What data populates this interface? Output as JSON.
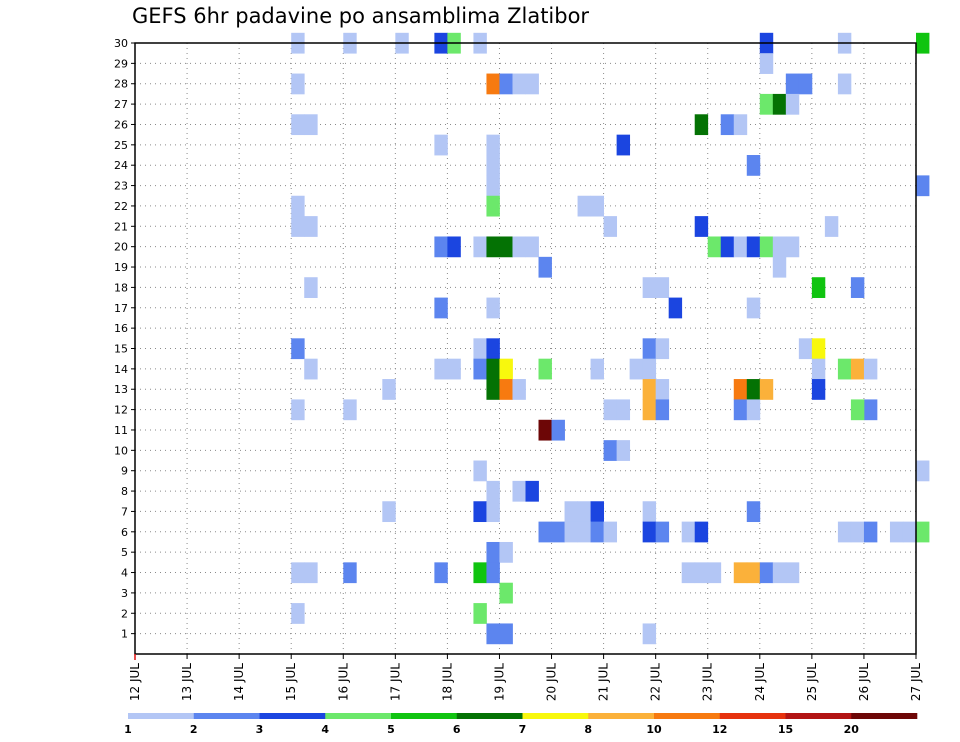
{
  "chart_data": {
    "type": "heatmap",
    "title": "GEFS 6hr padavine po ansamblima Zlatibor",
    "xlabel": "",
    "ylabel": "",
    "x_tick_labels": [
      "12 JUL",
      "13 JUL",
      "14 JUL",
      "15 JUL",
      "16 JUL",
      "17 JUL",
      "18 JUL",
      "19 JUL",
      "20 JUL",
      "21 JUL",
      "22 JUL",
      "23 JUL",
      "24 JUL",
      "25 JUL",
      "26 JUL",
      "27 JUL"
    ],
    "xlim_day": [
      12,
      27
    ],
    "y_tick_labels": [
      "1",
      "2",
      "3",
      "4",
      "5",
      "6",
      "7",
      "8",
      "9",
      "10",
      "11",
      "12",
      "13",
      "14",
      "15",
      "16",
      "17",
      "18",
      "19",
      "20",
      "21",
      "22",
      "23",
      "24",
      "25",
      "26",
      "27",
      "28",
      "29",
      "30"
    ],
    "ylim_member": [
      0,
      30
    ],
    "time_step_hours": 6,
    "grid": true,
    "legend_placement": "bottom",
    "legend": {
      "labels": [
        "1",
        "2",
        "3",
        "4",
        "5",
        "6",
        "7",
        "8",
        "10",
        "12",
        "15",
        "20"
      ],
      "colors": [
        "#b3c6f5",
        "#5c85ef",
        "#1b45e0",
        "#6ce86b",
        "#10c410",
        "#047204",
        "#f8f80d",
        "#fbb13a",
        "#f77a10",
        "#e6320e",
        "#b21414",
        "#6d0606"
      ]
    },
    "cells": [
      [
        15,
        30,
        1
      ],
      [
        16,
        30,
        1
      ],
      [
        17,
        30,
        1
      ],
      [
        17.75,
        30,
        3
      ],
      [
        18,
        30,
        4
      ],
      [
        18.5,
        30,
        1
      ],
      [
        24,
        30,
        3
      ],
      [
        25.5,
        30,
        1
      ],
      [
        27,
        30,
        5
      ],
      [
        24,
        29,
        1
      ],
      [
        15,
        28,
        1
      ],
      [
        18.75,
        28,
        9
      ],
      [
        19,
        28,
        2
      ],
      [
        19.25,
        28,
        1
      ],
      [
        19.5,
        28,
        1
      ],
      [
        24.5,
        28,
        2
      ],
      [
        24.75,
        28,
        2
      ],
      [
        25.5,
        28,
        1
      ],
      [
        24,
        27,
        4
      ],
      [
        24.25,
        27,
        6
      ],
      [
        24.5,
        27,
        1
      ],
      [
        15,
        26,
        1
      ],
      [
        15.25,
        26,
        1
      ],
      [
        22.75,
        26,
        6
      ],
      [
        23.25,
        26,
        2
      ],
      [
        23.5,
        26,
        1
      ],
      [
        17.75,
        25,
        1
      ],
      [
        18.75,
        25,
        1
      ],
      [
        21.25,
        25,
        3
      ],
      [
        18.75,
        24,
        1
      ],
      [
        23.75,
        24,
        2
      ],
      [
        18.75,
        23,
        1
      ],
      [
        27,
        23,
        2
      ],
      [
        15,
        22,
        1
      ],
      [
        18.75,
        22,
        4
      ],
      [
        20.5,
        22,
        1
      ],
      [
        20.75,
        22,
        1
      ],
      [
        15,
        21,
        1
      ],
      [
        15.25,
        21,
        1
      ],
      [
        21,
        21,
        1
      ],
      [
        22.75,
        21,
        3
      ],
      [
        25.25,
        21,
        1
      ],
      [
        17.75,
        20,
        2
      ],
      [
        18,
        20,
        3
      ],
      [
        18.5,
        20,
        1
      ],
      [
        18.75,
        20,
        6
      ],
      [
        19,
        20,
        6
      ],
      [
        19.25,
        20,
        1
      ],
      [
        19.5,
        20,
        1
      ],
      [
        23,
        20,
        4
      ],
      [
        23.25,
        20,
        3
      ],
      [
        23.5,
        20,
        1
      ],
      [
        23.75,
        20,
        3
      ],
      [
        24,
        20,
        4
      ],
      [
        24.25,
        20,
        1
      ],
      [
        24.5,
        20,
        1
      ],
      [
        19.75,
        19,
        2
      ],
      [
        24.25,
        19,
        1
      ],
      [
        15.25,
        18,
        1
      ],
      [
        21.75,
        18,
        1
      ],
      [
        22,
        18,
        1
      ],
      [
        25,
        18,
        5
      ],
      [
        25.75,
        18,
        2
      ],
      [
        17.75,
        17,
        2
      ],
      [
        18.75,
        17,
        1
      ],
      [
        22.25,
        17,
        3
      ],
      [
        23.75,
        17,
        1
      ],
      [
        15,
        15,
        2
      ],
      [
        18.5,
        15,
        1
      ],
      [
        18.75,
        15,
        3
      ],
      [
        21.75,
        15,
        2
      ],
      [
        22,
        15,
        1
      ],
      [
        24.75,
        15,
        1
      ],
      [
        25,
        15,
        7
      ],
      [
        15.25,
        14,
        1
      ],
      [
        17.75,
        14,
        1
      ],
      [
        18,
        14,
        1
      ],
      [
        18.5,
        14,
        2
      ],
      [
        18.75,
        14,
        6
      ],
      [
        19,
        14,
        7
      ],
      [
        19.75,
        14,
        4
      ],
      [
        20.75,
        14,
        1
      ],
      [
        21.5,
        14,
        1
      ],
      [
        21.75,
        14,
        1
      ],
      [
        25,
        14,
        1
      ],
      [
        25.5,
        14,
        4
      ],
      [
        25.75,
        14,
        8
      ],
      [
        26,
        14,
        1
      ],
      [
        16.75,
        13,
        1
      ],
      [
        18.75,
        13,
        6
      ],
      [
        19,
        13,
        9
      ],
      [
        19.25,
        13,
        1
      ],
      [
        21.75,
        13,
        8
      ],
      [
        22,
        13,
        1
      ],
      [
        23.5,
        13,
        9
      ],
      [
        23.75,
        13,
        6
      ],
      [
        24,
        13,
        8
      ],
      [
        25,
        13,
        3
      ],
      [
        15,
        12,
        1
      ],
      [
        16,
        12,
        1
      ],
      [
        21,
        12,
        1
      ],
      [
        21.25,
        12,
        1
      ],
      [
        21.75,
        12,
        8
      ],
      [
        22,
        12,
        2
      ],
      [
        23.5,
        12,
        2
      ],
      [
        23.75,
        12,
        1
      ],
      [
        26,
        12,
        2
      ],
      [
        25.75,
        12,
        4
      ],
      [
        19.75,
        11,
        12
      ],
      [
        20,
        11,
        2
      ],
      [
        21,
        10,
        2
      ],
      [
        21.25,
        10,
        1
      ],
      [
        18.5,
        9,
        1
      ],
      [
        27,
        9,
        1
      ],
      [
        18.75,
        8,
        1
      ],
      [
        19.25,
        8,
        1
      ],
      [
        19.5,
        8,
        3
      ],
      [
        16.75,
        7,
        1
      ],
      [
        18.5,
        7,
        3
      ],
      [
        18.75,
        7,
        1
      ],
      [
        20.25,
        7,
        1
      ],
      [
        20.5,
        7,
        1
      ],
      [
        20.75,
        7,
        3
      ],
      [
        21.75,
        7,
        1
      ],
      [
        23.75,
        7,
        2
      ],
      [
        19.75,
        6,
        2
      ],
      [
        20,
        6,
        2
      ],
      [
        20.25,
        6,
        1
      ],
      [
        20.5,
        6,
        1
      ],
      [
        20.75,
        6,
        2
      ],
      [
        21,
        6,
        1
      ],
      [
        21.75,
        6,
        3
      ],
      [
        22,
        6,
        2
      ],
      [
        22.5,
        6,
        1
      ],
      [
        22.75,
        6,
        3
      ],
      [
        25.5,
        6,
        1
      ],
      [
        25.75,
        6,
        1
      ],
      [
        26,
        6,
        2
      ],
      [
        26.5,
        6,
        1
      ],
      [
        26.75,
        6,
        1
      ],
      [
        27,
        6,
        4
      ],
      [
        18.75,
        5,
        2
      ],
      [
        19,
        5,
        1
      ],
      [
        15,
        4,
        1
      ],
      [
        15.25,
        4,
        1
      ],
      [
        16,
        4,
        2
      ],
      [
        17.75,
        4,
        2
      ],
      [
        18.5,
        4,
        5
      ],
      [
        18.75,
        4,
        2
      ],
      [
        22.5,
        4,
        1
      ],
      [
        22.75,
        4,
        1
      ],
      [
        23,
        4,
        1
      ],
      [
        23.5,
        4,
        8
      ],
      [
        23.75,
        4,
        8
      ],
      [
        24,
        4,
        2
      ],
      [
        24.25,
        4,
        1
      ],
      [
        24.5,
        4,
        1
      ],
      [
        19,
        3,
        4
      ],
      [
        15,
        2,
        1
      ],
      [
        18.5,
        2,
        4
      ],
      [
        18.75,
        1,
        2
      ],
      [
        19,
        1,
        2
      ],
      [
        21.75,
        1,
        1
      ]
    ]
  }
}
